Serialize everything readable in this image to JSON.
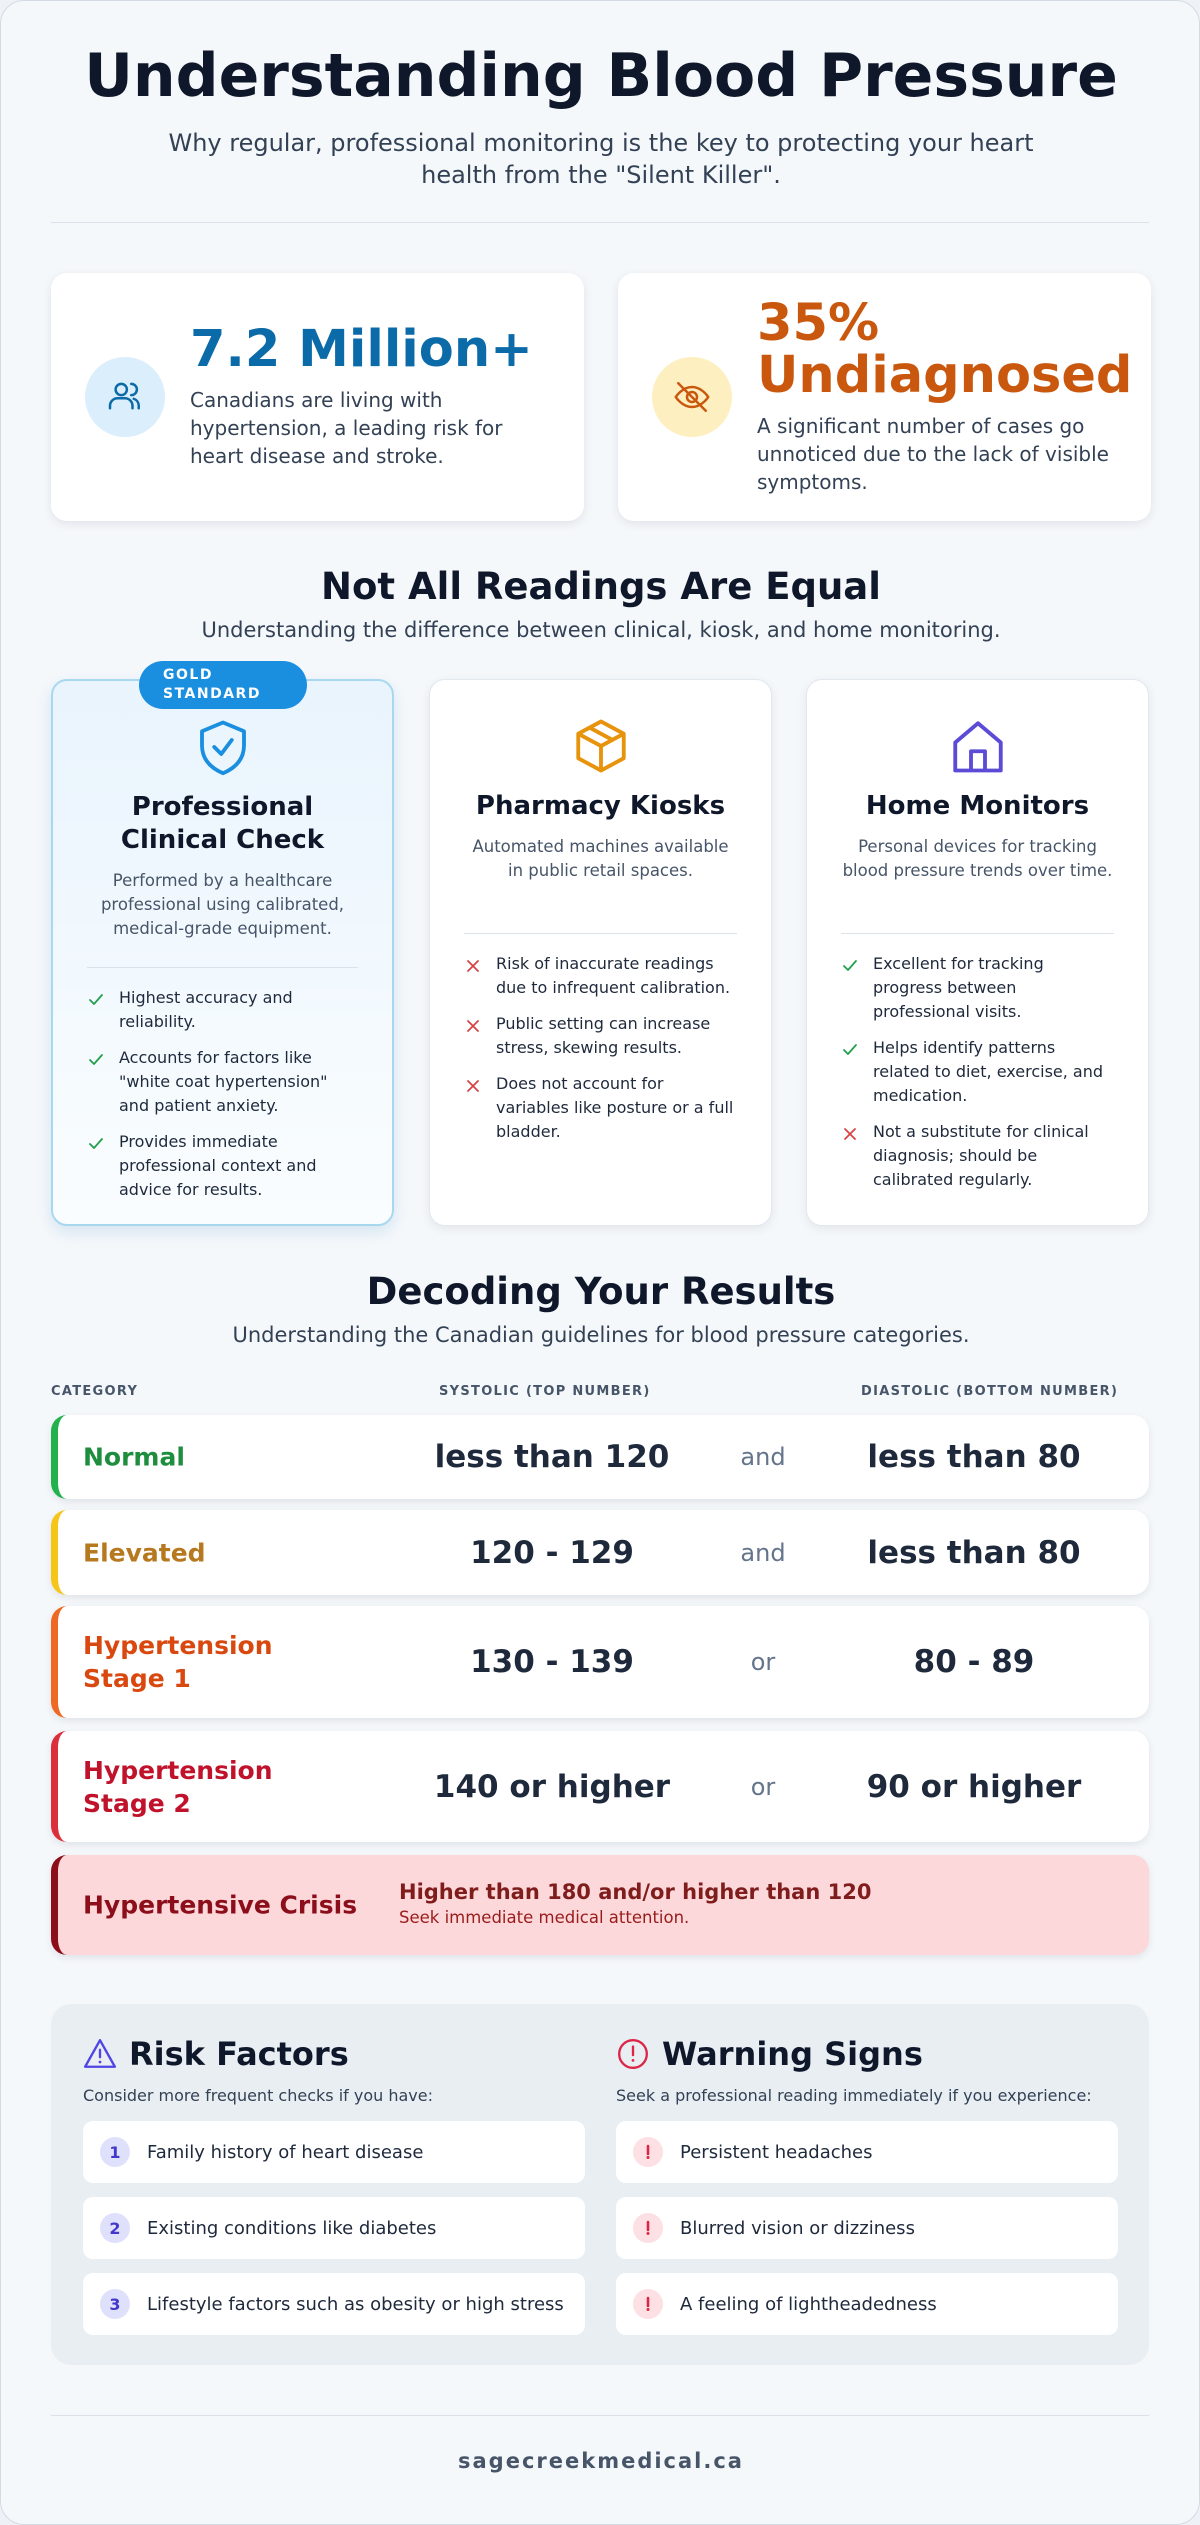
{
  "header": {
    "title": "Understanding Blood Pressure",
    "subtitle": "Why regular, professional monitoring is the key to protecting your heart health from the \"Silent Killer\"."
  },
  "stats": [
    {
      "value": "7.2 Million+",
      "text": "Canadians are living with hypertension, a leading risk for heart disease and stroke.",
      "color": "#0b6aa8"
    },
    {
      "value": "35% Undiagnosed",
      "text": "A significant number of cases go unnoticed due to the lack of visible symptoms.",
      "color": "#c9580e"
    }
  ],
  "readings": {
    "title": "Not All Readings Are Equal",
    "subtitle": "Understanding the difference between clinical, kiosk, and home monitoring.",
    "cards": [
      {
        "badge": "GOLD STANDARD",
        "title": "Professional Clinical Check",
        "description": "Performed by a healthcare professional using calibrated, medical-grade equipment.",
        "points": [
          {
            "text": "Highest accuracy and reliability.",
            "good": true
          },
          {
            "text": "Accounts for factors like \"white coat hypertension\" and patient anxiety.",
            "good": true
          },
          {
            "text": "Provides immediate professional context and advice for results.",
            "good": true
          }
        ]
      },
      {
        "title": "Pharmacy Kiosks",
        "description": "Automated machines available in public retail spaces.",
        "points": [
          {
            "text": "Risk of inaccurate readings due to infrequent calibration.",
            "good": false
          },
          {
            "text": "Public setting can increase stress, skewing results.",
            "good": false
          },
          {
            "text": "Does not account for variables like posture or a full bladder.",
            "good": false
          }
        ]
      },
      {
        "title": "Home Monitors",
        "description": "Personal devices for tracking blood pressure trends over time.",
        "points": [
          {
            "text": "Excellent for tracking progress between professional visits.",
            "good": true
          },
          {
            "text": "Helps identify patterns related to diet, exercise, and medication.",
            "good": true
          },
          {
            "text": "Not a substitute for clinical diagnosis; should be calibrated regularly.",
            "good": false
          }
        ]
      }
    ]
  },
  "results": {
    "title": "Decoding Your Results",
    "subtitle": "Understanding the Canadian guidelines for blood pressure categories.",
    "columns": [
      "CATEGORY",
      "SYSTOLIC (TOP NUMBER)",
      "DIASTOLIC (BOTTOM NUMBER)"
    ],
    "rows": [
      {
        "category": "Normal",
        "systolic": "less than 120",
        "joiner": "and",
        "diastolic": "less than 80",
        "color": "#1e8e3e",
        "border": "#22b14c"
      },
      {
        "category": "Elevated",
        "systolic": "120 - 129",
        "joiner": "and",
        "diastolic": "less than 80",
        "color": "#b7791f",
        "border": "#f5c518"
      },
      {
        "category": "Hypertension Stage 1",
        "systolic": "130 - 139",
        "joiner": "or",
        "diastolic": "80 - 89",
        "color": "#d9480f",
        "border": "#ee6a24"
      },
      {
        "category": "Hypertension Stage 2",
        "systolic": "140 or higher",
        "joiner": "or",
        "diastolic": "90 or higher",
        "color": "#c0132b",
        "border": "#dc2f3c"
      }
    ],
    "crisis": {
      "category": "Hypertensive Crisis",
      "detail": "Higher than 180 and/or higher than 120",
      "note": "Seek immediate medical attention."
    }
  },
  "risk_factors": {
    "title": "Risk Factors",
    "subtitle": "Consider more frequent checks if you have:",
    "items": [
      {
        "number": 1,
        "text": "Family history of heart disease"
      },
      {
        "number": 2,
        "text": "Existing conditions like diabetes"
      },
      {
        "number": 3,
        "text": "Lifestyle factors such as obesity or high stress"
      }
    ]
  },
  "warning_signs": {
    "title": "Warning Signs",
    "subtitle": "Seek a professional reading immediately if you experience:",
    "items": [
      "Persistent headaches",
      "Blurred vision or dizziness",
      "A feeling of lightheadedness"
    ]
  },
  "footer": "sagecreekmedical.ca"
}
